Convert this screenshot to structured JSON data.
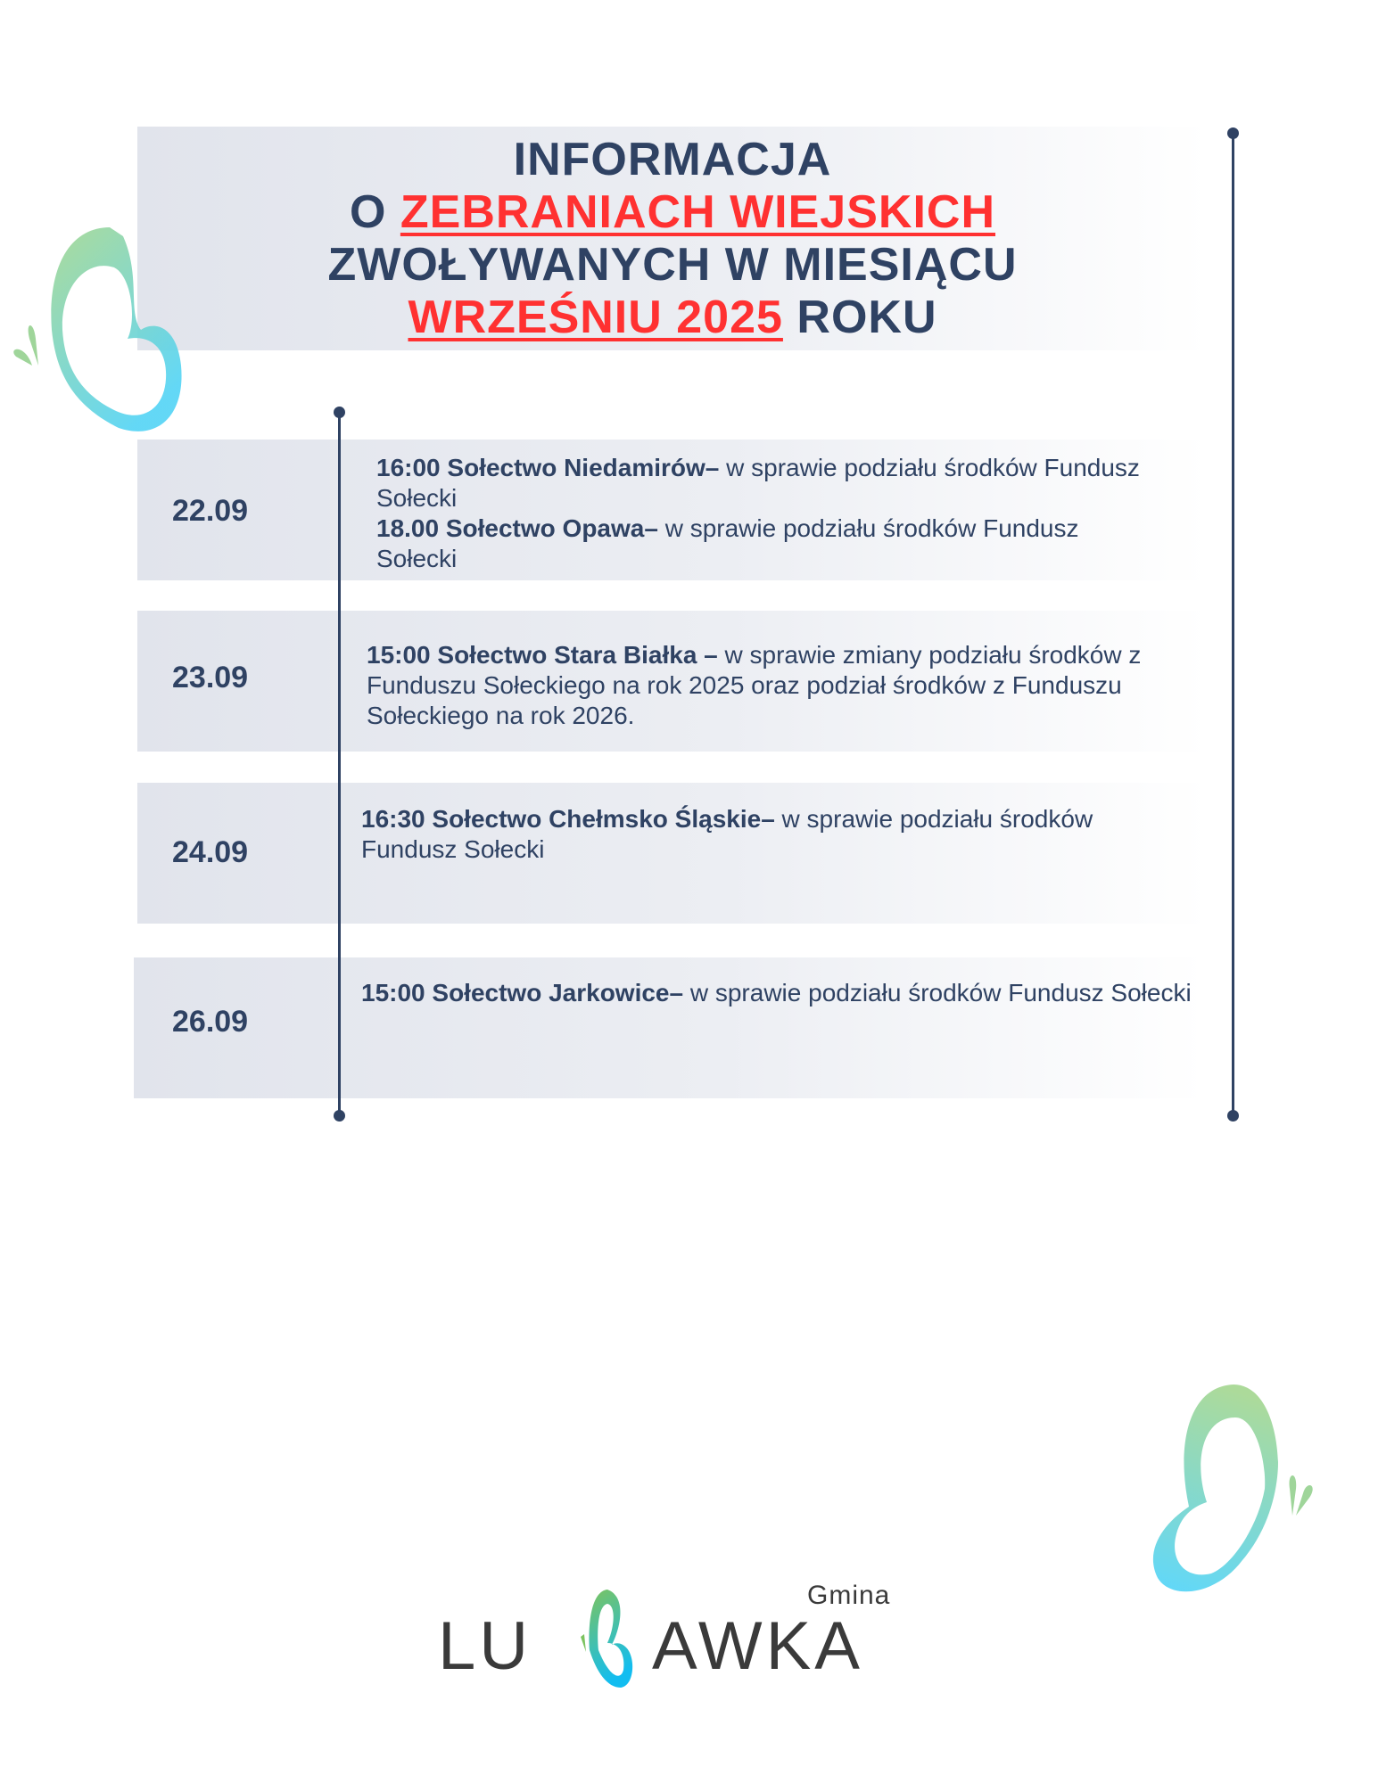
{
  "header": {
    "line1": "INFORMACJA",
    "line2_prefix": "O ",
    "line2_highlight": "ZEBRANIACH WIEJSKICH",
    "line3": "ZWOŁYWANYCH W MIESIĄCU",
    "line4_highlight": "WRZEŚNIU 2025",
    "line4_suffix": " ROKU"
  },
  "colors": {
    "text": "#2f4263",
    "accent": "#ff3131",
    "band": "#e1e4ec"
  },
  "meetings": [
    {
      "date": "22.09",
      "entries": [
        {
          "bold": "16:00 Sołectwo Niedamirów–",
          "text": " w sprawie podziału środków Fundusz Sołecki"
        },
        {
          "bold": "18.00 Sołectwo Opawa–",
          "text": " w sprawie podziału środków Fundusz Sołecki"
        }
      ]
    },
    {
      "date": "23.09",
      "entries": [
        {
          "bold": "15:00 Sołectwo Stara Białka –",
          "text": " w sprawie zmiany podziału środków z Funduszu Sołeckiego na rok 2025 oraz podział środków z Funduszu Sołeckiego na rok 2026."
        }
      ]
    },
    {
      "date": "24.09",
      "entries": [
        {
          "bold": "16:30 Sołectwo Chełmsko Śląskie–",
          "text": " w sprawie podziału środków Fundusz Sołecki"
        }
      ]
    },
    {
      "date": "26.09",
      "entries": [
        {
          "bold": "15:00 Sołectwo Jarkowice–",
          "text": " w sprawie podziału środków Fundusz Sołecki"
        }
      ]
    }
  ],
  "logo": {
    "small": "Gmina",
    "left": "LU",
    "right": "AWKA",
    "icon": "butterfly-icon"
  }
}
